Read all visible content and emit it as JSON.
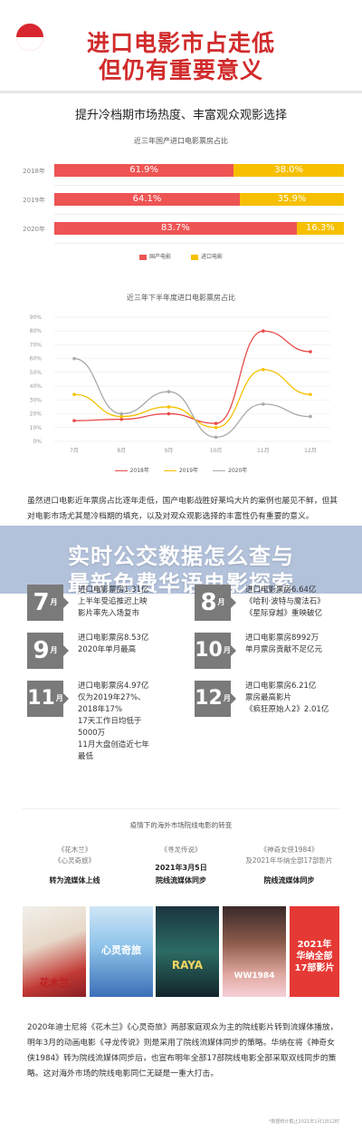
{
  "hero": {
    "title_line1": "进口电影市占走低",
    "title_line2": "但仍有重要意义"
  },
  "section1": {
    "title": "提升冷档期市场热度、丰富观众观影选择"
  },
  "chart_data": [
    {
      "type": "bar",
      "title": "近三年国产进口电影票房占比",
      "categories": [
        "2018年",
        "2019年",
        "2020年"
      ],
      "series": [
        {
          "name": "国产电影",
          "values": [
            61.9,
            64.1,
            83.7
          ],
          "labels": [
            "61.9%",
            "64.1%",
            "83.7%"
          ],
          "color": "#ee5454"
        },
        {
          "name": "进口电影",
          "values": [
            38.0,
            35.9,
            16.3
          ],
          "labels": [
            "38.0%",
            "35.9%",
            "16.3%"
          ],
          "color": "#f6c000"
        }
      ],
      "stacked": true
    },
    {
      "type": "line",
      "title": "近三年下半年度进口电影票房占比",
      "x": [
        "7月",
        "8月",
        "9月",
        "10月",
        "11月",
        "12月"
      ],
      "y_ticks": [
        "90%",
        "80%",
        "70%",
        "60%",
        "50%",
        "40%",
        "30%",
        "20%",
        "10%",
        "0%"
      ],
      "ylim": [
        0,
        90
      ],
      "series": [
        {
          "name": "2018年",
          "values": [
            15,
            16,
            20,
            13,
            80,
            65
          ],
          "color": "#e94a4a"
        },
        {
          "name": "2019年",
          "values": [
            34,
            18,
            25,
            10,
            52,
            34
          ],
          "color": "#f6c000"
        },
        {
          "name": "2020年",
          "values": [
            60,
            20,
            36,
            3,
            27,
            18
          ],
          "color": "#aaaaaa"
        }
      ]
    }
  ],
  "paragraph1": "虽然进口电影近年票房占比逐年走低，国产电影战胜好莱坞大片的案例也屡见不鲜，但其对电影市场尤其是冷档期的填充，以及对观众观影选择的丰富性仍有重要的意义。",
  "overlay": {
    "line1": "实时公交数据怎么查与",
    "line2": "最新免费华语电影探索"
  },
  "months": [
    {
      "num": "7",
      "yue": "月",
      "lines": [
        "进口电影票房1.31亿",
        "上半年受追推迟上映",
        "影片率先入场复市"
      ]
    },
    {
      "num": "8",
      "yue": "月",
      "lines": [
        "进口电影票房6.64亿",
        "《哈利·波特与魔法石》",
        "《星际穿越》重映破亿"
      ]
    },
    {
      "num": "9",
      "yue": "月",
      "lines": [
        "进口电影票房8.53亿",
        "2020年单月最高"
      ]
    },
    {
      "num": "10",
      "yue": "月",
      "lines": [
        "进口电影票房8992万",
        "单月票房贡献不足亿元"
      ]
    },
    {
      "num": "11",
      "yue": "月",
      "lines": [
        "进口电影票房4.97亿",
        "仅为2019年27%、",
        "2018年17%",
        "17天工作日均低于",
        "5000万",
        "11月大盘创造近七年",
        "最低"
      ]
    },
    {
      "num": "12",
      "yue": "月",
      "lines": [
        "进口电影票房6.21亿",
        "票房最高影片",
        "《疯狂原始人2》2.01亿"
      ]
    }
  ],
  "films": {
    "title": "疫情下的海外市场院线电影的转变",
    "groups": [
      {
        "names": "《花木兰》\n《心灵奇旅》",
        "date": "",
        "mode": "转为流媒体上线"
      },
      {
        "names": "《寻龙传说》",
        "date": "2021年3月5日",
        "mode": "院线流媒体同步"
      },
      {
        "names": "《神奇女侠1984》\n及2021年华纳全部17部影片",
        "date": "",
        "mode": "院线流媒体同步"
      }
    ],
    "posters": [
      "花木兰",
      "心灵奇旅",
      "RAYA",
      "WW1984"
    ],
    "card": {
      "line1": "2021年",
      "line2": "华纳全部",
      "line3": "17部影片"
    }
  },
  "paragraph2": "2020年迪士尼将《花木兰》《心灵奇旅》两部家庭观众为主的院线影片转到流媒体播放，明年3月的动画电影《寻龙传说》则是采用了院线流媒体同步的策略。华纳在将《神奇女侠1984》转为院线流媒体同步后，也宣布明年全部17部院线电影全部采取双线同步的策略。这对海外市场的院线电影同仁无疑是一重大打击。",
  "footnote": "*数据统计截止2021年1月1日12时"
}
